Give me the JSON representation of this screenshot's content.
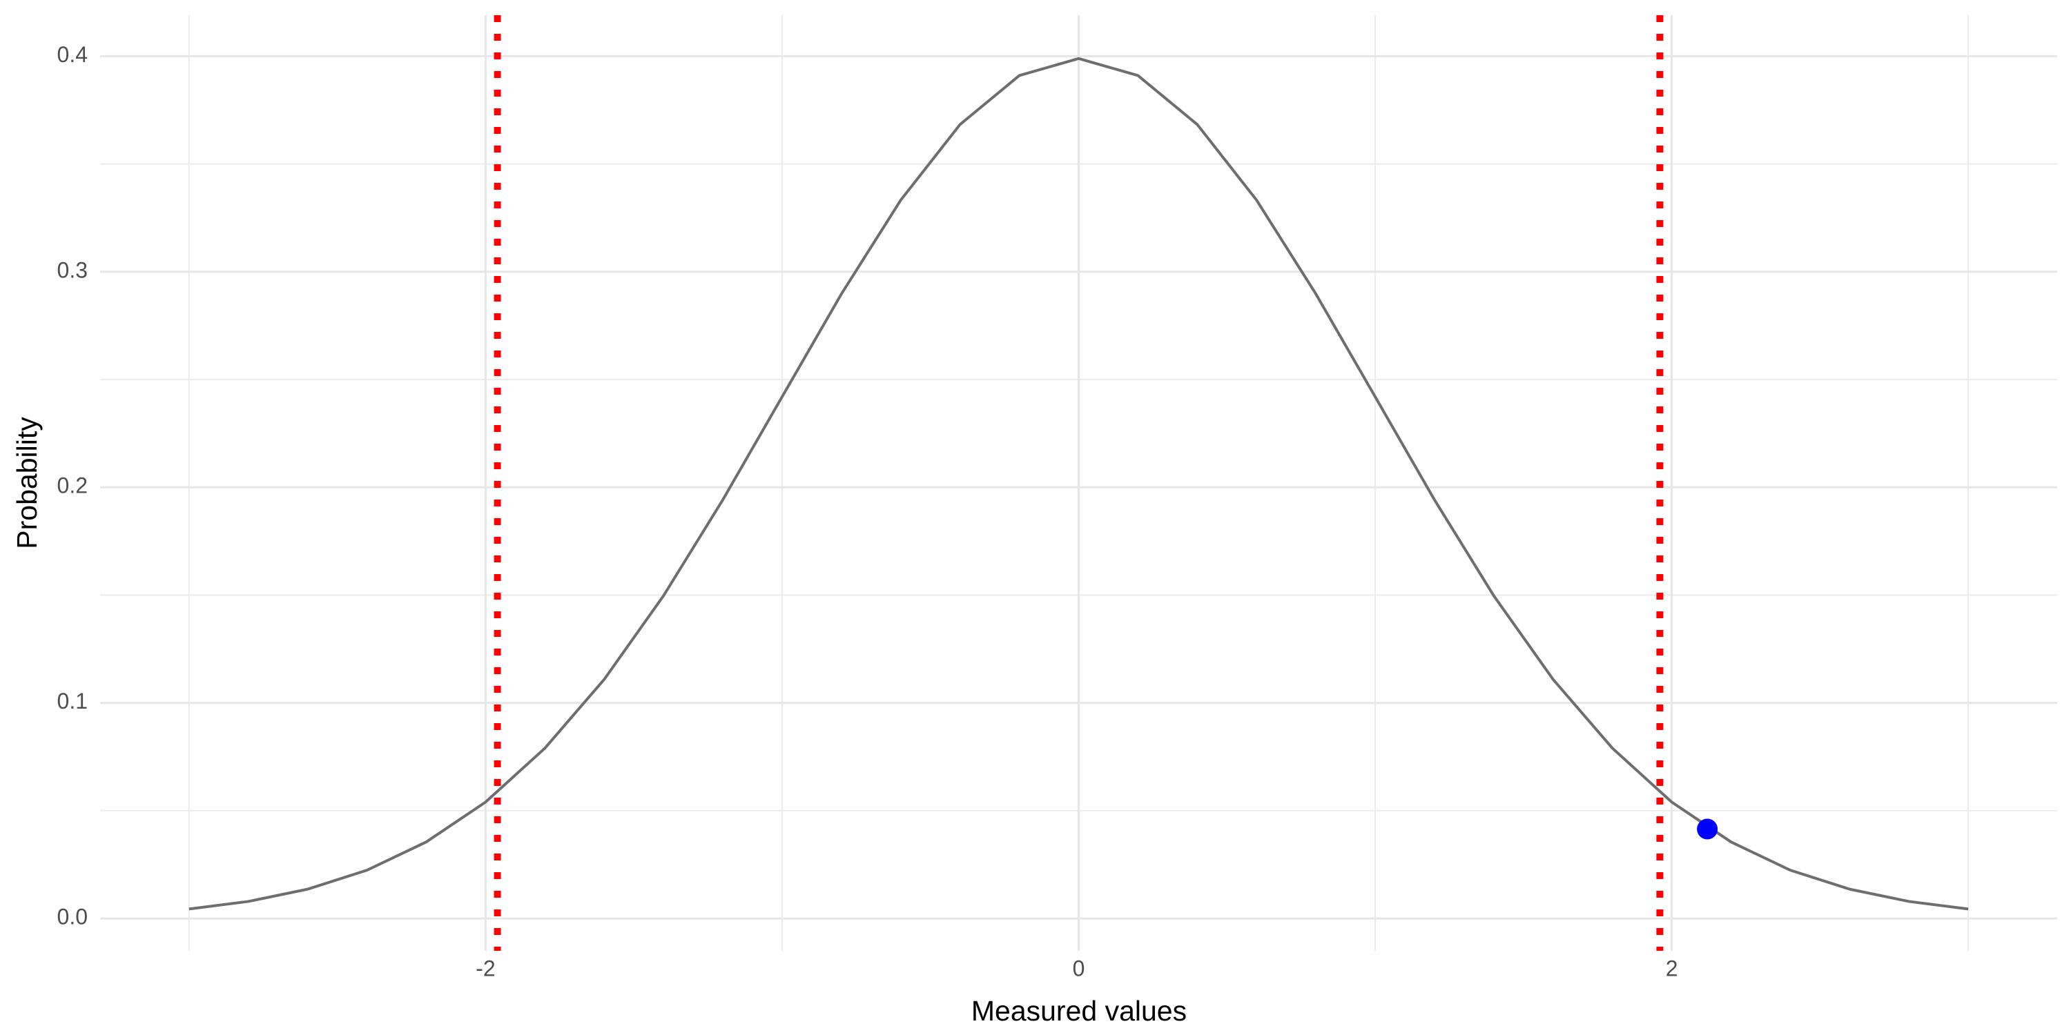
{
  "chart_data": {
    "type": "line",
    "x_label": "Measured values",
    "y_label": "Probability",
    "curve": {
      "color": "#6e6e6e",
      "x": [
        -3,
        -2.8,
        -2.6,
        -2.4,
        -2.2,
        -2,
        -1.8,
        -1.6,
        -1.4,
        -1.2,
        -1,
        -0.8,
        -0.6,
        -0.4,
        -0.2,
        0,
        0.2,
        0.4,
        0.6,
        0.8,
        1,
        1.2,
        1.4,
        1.6,
        1.8,
        2,
        2.2,
        2.4,
        2.6,
        2.8,
        3
      ],
      "y": [
        0.0044,
        0.0079,
        0.0136,
        0.0224,
        0.0355,
        0.054,
        0.079,
        0.1109,
        0.1497,
        0.1942,
        0.242,
        0.2897,
        0.3332,
        0.3683,
        0.391,
        0.3989,
        0.391,
        0.3683,
        0.3332,
        0.2897,
        0.242,
        0.1942,
        0.1497,
        0.1109,
        0.079,
        0.054,
        0.0355,
        0.0224,
        0.0136,
        0.0079,
        0.0044
      ]
    },
    "vlines": {
      "color": "#ff0000",
      "x": [
        -1.96,
        1.96
      ]
    },
    "point": {
      "color": "#0000ff",
      "x": 2.12,
      "y": 0.0415
    },
    "xlim": [
      -3.3,
      3.3
    ],
    "ylim": [
      -0.015,
      0.419
    ],
    "xticks": [
      -2,
      0,
      2
    ],
    "x_minor_ticks": [
      -3,
      -1,
      1,
      3
    ],
    "yticks": [
      {
        "value": 0,
        "label": "0.0"
      },
      0.1,
      0.2,
      0.3,
      0.4
    ],
    "y_minor_ticks": [
      0.05,
      0.15,
      0.25,
      0.35
    ],
    "grid": true
  }
}
